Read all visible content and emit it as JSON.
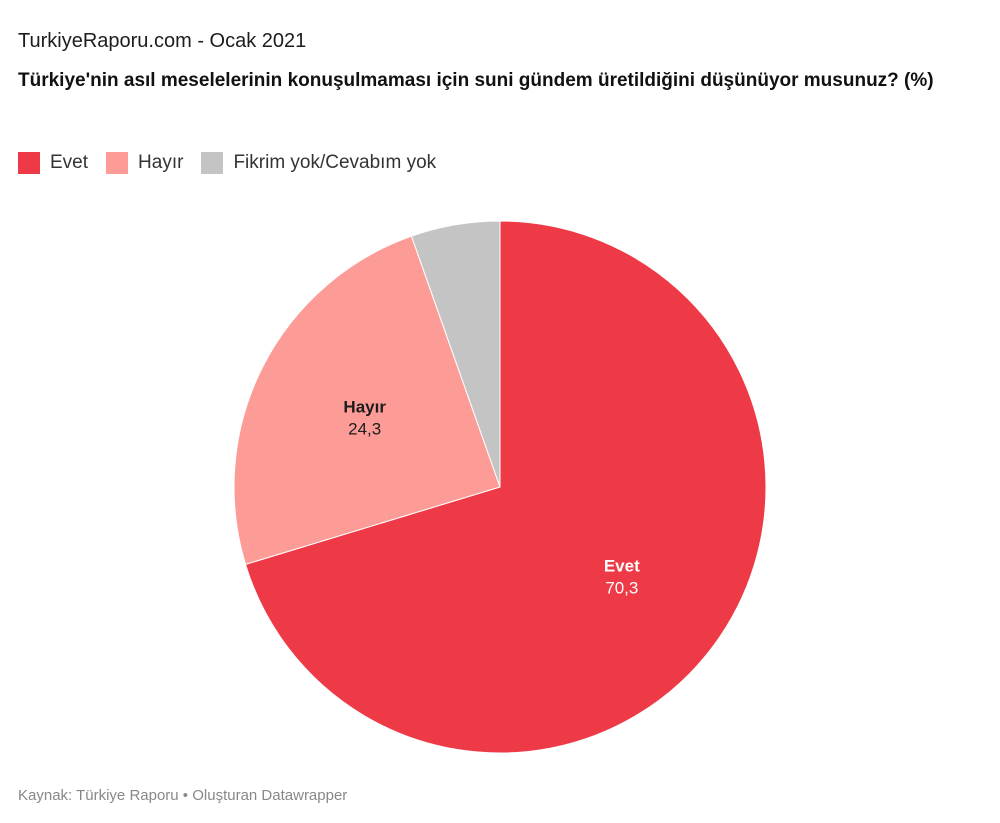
{
  "header": {
    "source_line": "TurkiyeRaporu.com - Ocak 2021",
    "title": "Türkiye'nin asıl meselelerinin konuşulmaması için suni gündem üretildiğini düşünüyor musunuz? (%)"
  },
  "legend": [
    {
      "label": "Evet",
      "color": "#ee3a47"
    },
    {
      "label": "Hayır",
      "color": "#fd9c97"
    },
    {
      "label": "Fikrim yok/Cevabım yok",
      "color": "#c4c4c4"
    }
  ],
  "footer": {
    "text": "Kaynak: Türkiye Raporu • Oluşturan Datawrapper"
  },
  "chart_data": {
    "type": "pie",
    "title": "Türkiye'nin asıl meselelerinin konuşulmaması için suni gündem üretildiğini düşünüyor musunuz? (%)",
    "slices": [
      {
        "label": "Evet",
        "value": 70.3,
        "value_label": "70,3",
        "color": "#ee3a47",
        "label_color": "#ffffff"
      },
      {
        "label": "Hayır",
        "value": 24.3,
        "value_label": "24,3",
        "color": "#fd9c97",
        "label_color": "#1d1d1d"
      },
      {
        "label": "Fikrim yok/Cevabım yok",
        "value": 5.4,
        "value_label": "",
        "color": "#c4c4c4",
        "label_color": "#1d1d1d"
      }
    ],
    "start": "top",
    "direction": "clockwise",
    "legend_position": "top-left"
  }
}
